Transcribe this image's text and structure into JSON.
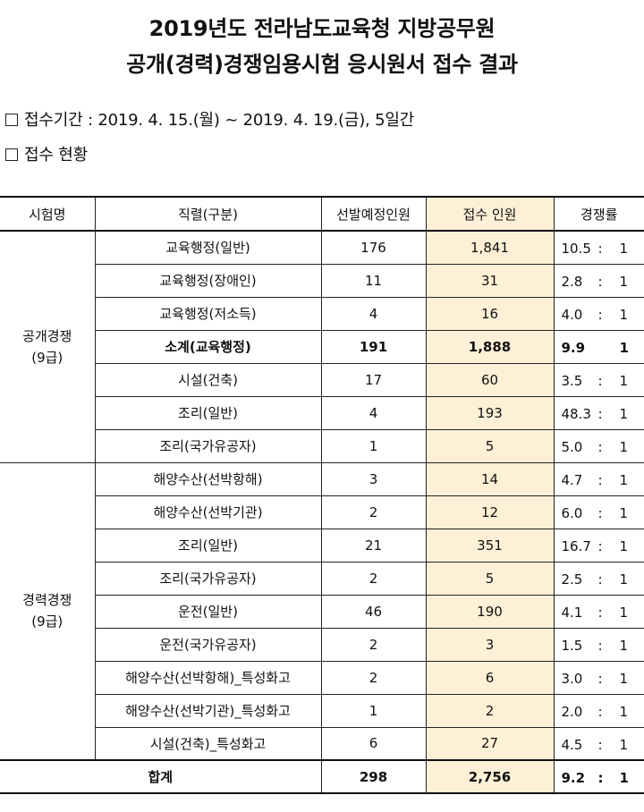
{
  "title_line1": "2019년도 전라남도교육청 지방공무원",
  "title_line2": "공개(경력)경쟁임용시험 응시원서 접수 결과",
  "period": "접수기간 : 2019. 4. 15.(월) ~ 2019. 4. 19.(금), 5일간",
  "status_label": "접수 현황",
  "headers": [
    "시험명",
    "직렬(구분)",
    "선발예정인원",
    "접수 인원",
    "경쟁률"
  ],
  "groups": [
    {
      "name_line1": "공개경쟁",
      "name_line2": "(9급)"
    },
    {
      "name_line1": "경력경쟁",
      "name_line2": "(9급)"
    }
  ],
  "rows": [
    {
      "category": "교육행정(일반)",
      "planned": "176",
      "applied": "1,841",
      "ratio": "10.5",
      "sep": ":",
      "one": "1"
    },
    {
      "category": "교육행정(장애인)",
      "planned": "11",
      "applied": "31",
      "ratio": "2.8",
      "sep": ":",
      "one": "1"
    },
    {
      "category": "교육행정(저소득)",
      "planned": "4",
      "applied": "16",
      "ratio": "4.0",
      "sep": ":",
      "one": "1"
    },
    {
      "category": "소계(교육행정)",
      "planned": "191",
      "applied": "1,888",
      "ratio": "9.9",
      "sep": "",
      "one": "1"
    },
    {
      "category": "시설(건축)",
      "planned": "17",
      "applied": "60",
      "ratio": "3.5",
      "sep": ":",
      "one": "1"
    },
    {
      "category": "조리(일반)",
      "planned": "4",
      "applied": "193",
      "ratio": "48.3",
      "sep": ":",
      "one": "1"
    },
    {
      "category": "조리(국가유공자)",
      "planned": "1",
      "applied": "5",
      "ratio": "5.0",
      "sep": ":",
      "one": "1"
    },
    {
      "category": "해양수산(선박항해)",
      "planned": "3",
      "applied": "14",
      "ratio": "4.7",
      "sep": ":",
      "one": "1"
    },
    {
      "category": "해양수산(선박기관)",
      "planned": "2",
      "applied": "12",
      "ratio": "6.0",
      "sep": ":",
      "one": "1"
    },
    {
      "category": "조리(일반)",
      "planned": "21",
      "applied": "351",
      "ratio": "16.7",
      "sep": ":",
      "one": "1"
    },
    {
      "category": "조리(국가유공자)",
      "planned": "2",
      "applied": "5",
      "ratio": "2.5",
      "sep": ":",
      "one": "1"
    },
    {
      "category": "운전(일반)",
      "planned": "46",
      "applied": "190",
      "ratio": "4.1",
      "sep": ":",
      "one": "1"
    },
    {
      "category": "운전(국가유공자)",
      "planned": "2",
      "applied": "3",
      "ratio": "1.5",
      "sep": ":",
      "one": "1"
    },
    {
      "category": "해양수산(선박항해)_특성화고",
      "planned": "2",
      "applied": "6",
      "ratio": "3.0",
      "sep": ":",
      "one": "1"
    },
    {
      "category": "해양수산(선박기관)_특성화고",
      "planned": "1",
      "applied": "2",
      "ratio": "2.0",
      "sep": ":",
      "one": "1"
    },
    {
      "category": "시설(건축)_특성화고",
      "planned": "6",
      "applied": "27",
      "ratio": "4.5",
      "sep": ":",
      "one": "1"
    }
  ],
  "total": {
    "label": "합계",
    "planned": "298",
    "applied": "2,756",
    "ratio": "9.2",
    "sep": ":",
    "one": "1"
  },
  "colors": {
    "highlight": "#fdf0d6",
    "border": "#222222"
  }
}
